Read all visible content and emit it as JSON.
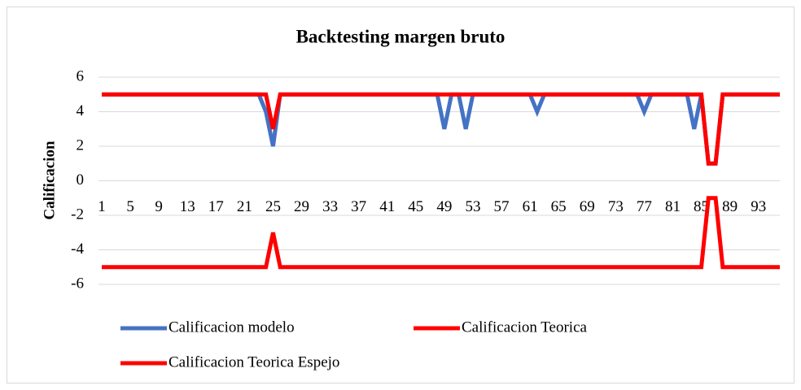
{
  "chart_data": {
    "type": "line",
    "title": "Backtesting margen bruto",
    "y_label": "Calificacion",
    "categories": [
      "1",
      null,
      null,
      null,
      "5",
      null,
      null,
      null,
      "9",
      null,
      null,
      null,
      "13",
      null,
      null,
      null,
      "17",
      null,
      null,
      null,
      "21",
      null,
      null,
      null,
      "25",
      null,
      null,
      null,
      "29",
      null,
      null,
      null,
      "33",
      null,
      null,
      null,
      "37",
      null,
      null,
      null,
      "41",
      null,
      null,
      null,
      "45",
      null,
      null,
      null,
      "49",
      null,
      null,
      null,
      "53",
      null,
      null,
      null,
      "57",
      null,
      null,
      null,
      "61",
      null,
      null,
      null,
      "65",
      null,
      null,
      null,
      "69",
      null,
      null,
      null,
      "73",
      null,
      null,
      null,
      "77",
      null,
      null,
      null,
      "81",
      null,
      null,
      null,
      "85",
      null,
      null,
      null,
      "89",
      null,
      null,
      null,
      "93",
      null,
      null,
      null
    ],
    "series": [
      {
        "name": "Calificacion modelo",
        "color": "#4472c4",
        "values": [
          5,
          5,
          5,
          5,
          5,
          5,
          5,
          5,
          5,
          5,
          5,
          5,
          5,
          5,
          5,
          5,
          5,
          5,
          5,
          5,
          5,
          5,
          5,
          4,
          2,
          5,
          5,
          5,
          5,
          5,
          5,
          5,
          5,
          5,
          5,
          5,
          5,
          5,
          5,
          5,
          5,
          5,
          5,
          5,
          5,
          5,
          5,
          5,
          3,
          5,
          5,
          3,
          5,
          5,
          5,
          5,
          5,
          5,
          5,
          5,
          5,
          4,
          5,
          5,
          5,
          5,
          5,
          5,
          5,
          5,
          5,
          5,
          5,
          5,
          5,
          5,
          4,
          5,
          5,
          5,
          5,
          5,
          5,
          3,
          5,
          1,
          1,
          5,
          5,
          5,
          5,
          5,
          5,
          5,
          5,
          5
        ]
      },
      {
        "name": "Calificacion Teorica",
        "color": "#ff0000",
        "values": [
          5,
          5,
          5,
          5,
          5,
          5,
          5,
          5,
          5,
          5,
          5,
          5,
          5,
          5,
          5,
          5,
          5,
          5,
          5,
          5,
          5,
          5,
          5,
          5,
          3,
          5,
          5,
          5,
          5,
          5,
          5,
          5,
          5,
          5,
          5,
          5,
          5,
          5,
          5,
          5,
          5,
          5,
          5,
          5,
          5,
          5,
          5,
          5,
          5,
          5,
          5,
          5,
          5,
          5,
          5,
          5,
          5,
          5,
          5,
          5,
          5,
          5,
          5,
          5,
          5,
          5,
          5,
          5,
          5,
          5,
          5,
          5,
          5,
          5,
          5,
          5,
          5,
          5,
          5,
          5,
          5,
          5,
          5,
          5,
          5,
          1,
          1,
          5,
          5,
          5,
          5,
          5,
          5,
          5,
          5,
          5
        ]
      },
      {
        "name": "Calificacion Teorica Espejo",
        "color": "#ff0000",
        "values": [
          -5,
          -5,
          -5,
          -5,
          -5,
          -5,
          -5,
          -5,
          -5,
          -5,
          -5,
          -5,
          -5,
          -5,
          -5,
          -5,
          -5,
          -5,
          -5,
          -5,
          -5,
          -5,
          -5,
          -5,
          -3,
          -5,
          -5,
          -5,
          -5,
          -5,
          -5,
          -5,
          -5,
          -5,
          -5,
          -5,
          -5,
          -5,
          -5,
          -5,
          -5,
          -5,
          -5,
          -5,
          -5,
          -5,
          -5,
          -5,
          -5,
          -5,
          -5,
          -5,
          -5,
          -5,
          -5,
          -5,
          -5,
          -5,
          -5,
          -5,
          -5,
          -5,
          -5,
          -5,
          -5,
          -5,
          -5,
          -5,
          -5,
          -5,
          -5,
          -5,
          -5,
          -5,
          -5,
          -5,
          -5,
          -5,
          -5,
          -5,
          -5,
          -5,
          -5,
          -5,
          -5,
          -1,
          -1,
          -5,
          -5,
          -5,
          -5,
          -5,
          -5,
          -5,
          -5,
          -5
        ]
      }
    ],
    "ylim": [
      -6,
      6
    ],
    "yticks": [
      -6,
      -4,
      -2,
      0,
      2,
      4,
      6
    ],
    "grid": true
  }
}
